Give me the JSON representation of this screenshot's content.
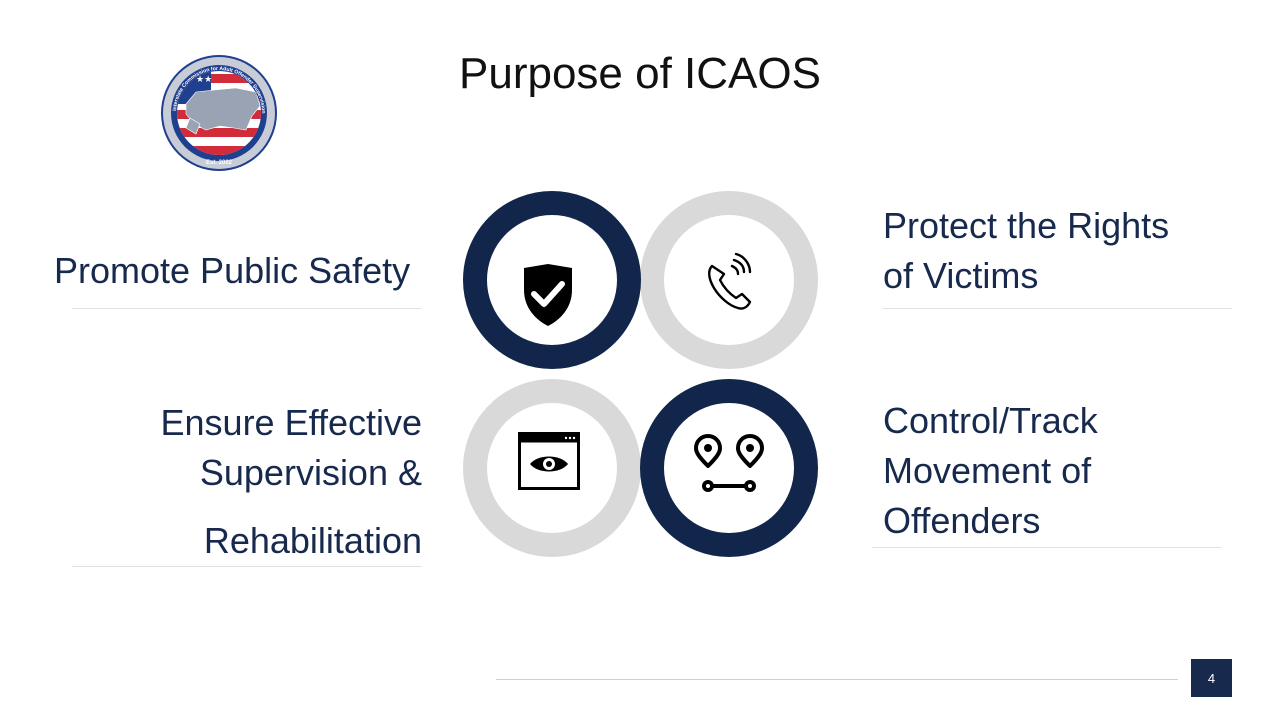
{
  "slide": {
    "title": "Purpose of ICAOS",
    "page_number": "4"
  },
  "logo": {
    "ring_text": "Interstate Commission for Adult Offender Supervision",
    "established": "Est. 2002"
  },
  "quadrants": [
    {
      "lines": [
        "Promote Public Safety"
      ],
      "icon": "shield-check-icon"
    },
    {
      "lines": [
        "Protect the Rights",
        "of Victims"
      ],
      "icon": "phone-call-icon"
    },
    {
      "lines": [
        "Ensure Effective",
        "Supervision &",
        "Rehabilitation"
      ],
      "icon": "eye-window-icon"
    },
    {
      "lines": [
        "Control/Track",
        "Movement of",
        "Offenders"
      ],
      "icon": "route-pins-icon"
    }
  ],
  "colors": {
    "navy": "#17294d",
    "ring_navy": "#11264a",
    "ring_gray": "#d9d9d9",
    "rule": "#e2e2e2"
  }
}
